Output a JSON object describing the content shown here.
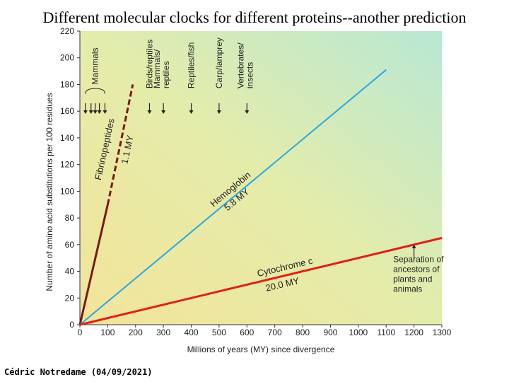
{
  "title": "Different molecular clocks for different proteins--another prediction",
  "footer": "Cédric Notredame (04/09/2021)",
  "colors": {
    "fibrinopeptides": "#7a1a12",
    "hemoglobin": "#29a8e0",
    "cytochrome": "#e0201a",
    "arrow": "#222222"
  },
  "chart_data": {
    "type": "line",
    "xlabel": "Millions of years (MY) since divergence",
    "ylabel": "Number of amino acid substitutions per 100 residues",
    "xlim": [
      0,
      1300
    ],
    "ylim": [
      0,
      220
    ],
    "xticks": [
      0,
      100,
      200,
      300,
      400,
      500,
      600,
      700,
      800,
      900,
      1000,
      1100,
      1200,
      1300
    ],
    "yticks": [
      0,
      20,
      40,
      60,
      80,
      100,
      120,
      140,
      160,
      180,
      200,
      220
    ],
    "series": [
      {
        "name": "Fibrinopeptides",
        "rate": "1.1 MY",
        "color": "#7a1a12",
        "x": [
          0,
          100,
          190
        ],
        "y": [
          0,
          90,
          180
        ]
      },
      {
        "name": "Hemoglobin",
        "rate": "5.8 MY",
        "color": "#29a8e0",
        "x": [
          0,
          1100
        ],
        "y": [
          0,
          191
        ]
      },
      {
        "name": "Cytochrome c",
        "rate": "20.0 MY",
        "color": "#e0201a",
        "x": [
          0,
          1300
        ],
        "y": [
          0,
          65
        ]
      }
    ],
    "divergence_markers": [
      {
        "label": "Mammals",
        "x": [
          20,
          40,
          55,
          70,
          90
        ]
      },
      {
        "label": "Birds/reptiles",
        "x": [
          250
        ]
      },
      {
        "label": "Mammals/\nreptiles",
        "x": [
          300
        ]
      },
      {
        "label": "Reptiles/fish",
        "x": [
          400
        ]
      },
      {
        "label": "Carp/lamprey",
        "x": [
          500
        ]
      },
      {
        "label": "Vertebrates/\ninsects",
        "x": [
          600
        ]
      }
    ],
    "annotations": [
      {
        "text": "Separation of\nancestors of\nplants and\nanimals",
        "x": 1200,
        "y": 60
      }
    ]
  }
}
